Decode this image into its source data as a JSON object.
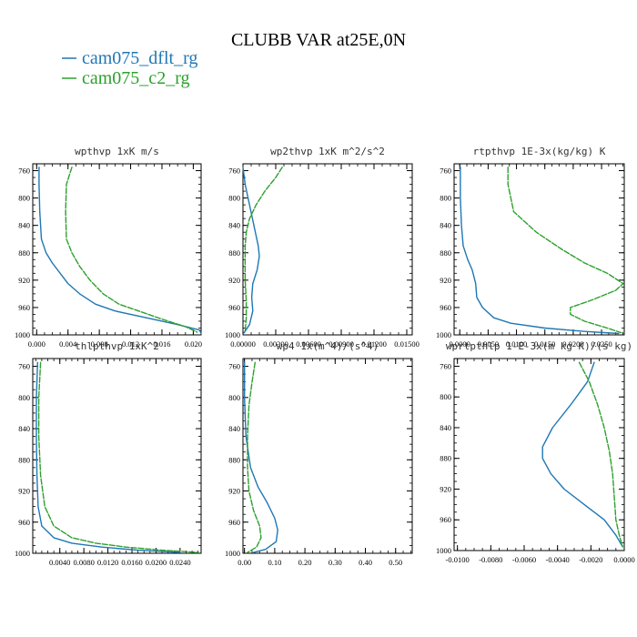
{
  "figure": {
    "title": "CLUBB VAR at25E,0N",
    "legend": [
      {
        "name": "cam075_dflt_rg",
        "color": "#1f77b4",
        "style": "solid"
      },
      {
        "name": "cam075_c2_rg",
        "color": "#2ca02c",
        "style": "dashed"
      }
    ]
  },
  "chart_data": [
    {
      "type": "line",
      "title": "wpthvp  1xK m/s",
      "xlim": [
        -0.0005,
        0.021
      ],
      "ylim": [
        1000,
        750
      ],
      "xticks": [
        0.0,
        0.004,
        0.008,
        0.012,
        0.016,
        0.02
      ],
      "xtick_labels": [
        "0.000",
        "0.004",
        "0.008",
        "0.012",
        "0.016",
        "0.020"
      ],
      "yticks": [
        760,
        800,
        840,
        880,
        920,
        960,
        1000
      ],
      "series": [
        {
          "name": "cam075_dflt_rg",
          "points": [
            [
              0.0003,
              755
            ],
            [
              0.0003,
              780
            ],
            [
              0.0004,
              820
            ],
            [
              0.0006,
              860
            ],
            [
              0.0012,
              880
            ],
            [
              0.002,
              895
            ],
            [
              0.003,
              910
            ],
            [
              0.004,
              925
            ],
            [
              0.0055,
              940
            ],
            [
              0.0075,
              955
            ],
            [
              0.01,
              965
            ],
            [
              0.014,
              975
            ],
            [
              0.018,
              985
            ],
            [
              0.0208,
              993
            ],
            [
              0.021,
              998
            ]
          ]
        },
        {
          "name": "cam075_c2_rg",
          "points": [
            [
              0.0045,
              755
            ],
            [
              0.0038,
              780
            ],
            [
              0.0037,
              820
            ],
            [
              0.0038,
              860
            ],
            [
              0.0045,
              880
            ],
            [
              0.0055,
              900
            ],
            [
              0.0068,
              920
            ],
            [
              0.0085,
              940
            ],
            [
              0.0105,
              955
            ],
            [
              0.013,
              965
            ],
            [
              0.016,
              977
            ],
            [
              0.019,
              988
            ],
            [
              0.0205,
              996
            ]
          ]
        }
      ]
    },
    {
      "type": "line",
      "title": "wp2thvp  1xK m^2/s^2",
      "xlim": [
        0.0,
        0.0155
      ],
      "ylim": [
        1000,
        750
      ],
      "xticks": [
        0.0,
        0.003,
        0.006,
        0.009,
        0.012,
        0.015
      ],
      "xtick_labels": [
        "0.00000",
        "0.00300",
        "0.00600",
        "0.00900",
        "0.01200",
        "0.01500"
      ],
      "yticks": [
        760,
        800,
        840,
        880,
        920,
        960,
        1000
      ],
      "series": [
        {
          "name": "cam075_dflt_rg",
          "points": [
            [
              0.0,
              755
            ],
            [
              0.0002,
              780
            ],
            [
              0.0006,
              810
            ],
            [
              0.001,
              840
            ],
            [
              0.0014,
              870
            ],
            [
              0.0015,
              885
            ],
            [
              0.0013,
              905
            ],
            [
              0.0009,
              925
            ],
            [
              0.0008,
              945
            ],
            [
              0.0009,
              965
            ],
            [
              0.0006,
              985
            ],
            [
              0.0001,
              997
            ]
          ]
        },
        {
          "name": "cam075_c2_rg",
          "points": [
            [
              0.0036,
              755
            ],
            [
              0.003,
              770
            ],
            [
              0.002,
              790
            ],
            [
              0.0012,
              810
            ],
            [
              0.0006,
              830
            ],
            [
              0.0003,
              850
            ],
            [
              0.0002,
              870
            ],
            [
              0.0002,
              890
            ],
            [
              0.0002,
              920
            ],
            [
              0.0003,
              950
            ],
            [
              0.0003,
              975
            ],
            [
              0.0002,
              995
            ]
          ]
        }
      ]
    },
    {
      "type": "line",
      "title": "rtpthvp  1E-3x(kg/kg) K",
      "xlim": [
        -0.001,
        0.029
      ],
      "ylim": [
        1000,
        750
      ],
      "xticks": [
        0.0,
        0.005,
        0.01,
        0.015,
        0.02,
        0.025
      ],
      "xtick_labels": [
        "0.0000",
        "0.0050",
        "0.0100",
        "0.0150",
        "0.0200",
        "0.0250"
      ],
      "yticks": [
        760,
        800,
        840,
        880,
        920,
        960,
        1000
      ],
      "series": [
        {
          "name": "cam075_dflt_rg",
          "points": [
            [
              0.0001,
              755
            ],
            [
              0.0001,
              800
            ],
            [
              0.0003,
              840
            ],
            [
              0.0006,
              870
            ],
            [
              0.0014,
              890
            ],
            [
              0.0022,
              905
            ],
            [
              0.0028,
              925
            ],
            [
              0.003,
              945
            ],
            [
              0.004,
              960
            ],
            [
              0.006,
              975
            ],
            [
              0.009,
              983
            ],
            [
              0.015,
              990
            ],
            [
              0.022,
              995
            ],
            [
              0.028,
              998
            ]
          ]
        },
        {
          "name": "cam075_c2_rg",
          "points": [
            [
              0.0085,
              755
            ],
            [
              0.0085,
              780
            ],
            [
              0.0095,
              820
            ],
            [
              0.0135,
              850
            ],
            [
              0.018,
              875
            ],
            [
              0.022,
              895
            ],
            [
              0.026,
              910
            ],
            [
              0.0288,
              925
            ],
            [
              0.0275,
              935
            ],
            [
              0.023,
              950
            ],
            [
              0.0195,
              960
            ],
            [
              0.0195,
              970
            ],
            [
              0.022,
              980
            ],
            [
              0.026,
              990
            ],
            [
              0.0285,
              997
            ]
          ]
        }
      ]
    },
    {
      "type": "line",
      "title": "thlpthvp  1xK^2",
      "xlim": [
        -0.0005,
        0.0275
      ],
      "ylim": [
        1000,
        750
      ],
      "xticks": [
        0.004,
        0.008,
        0.012,
        0.016,
        0.02,
        0.024
      ],
      "xtick_labels": [
        "0.0040",
        "0.0080",
        "0.0120",
        "0.0160",
        "0.0200",
        "0.0240"
      ],
      "yticks": [
        760,
        800,
        840,
        880,
        920,
        960,
        1000
      ],
      "series": [
        {
          "name": "cam075_dflt_rg",
          "points": [
            [
              0.0003,
              755
            ],
            [
              0.0001,
              800
            ],
            [
              0.0001,
              850
            ],
            [
              0.0002,
              900
            ],
            [
              0.0004,
              940
            ],
            [
              0.001,
              965
            ],
            [
              0.003,
              980
            ],
            [
              0.006,
              987
            ],
            [
              0.011,
              992
            ],
            [
              0.017,
              996
            ],
            [
              0.024,
              999
            ]
          ]
        },
        {
          "name": "cam075_c2_rg",
          "points": [
            [
              0.0008,
              755
            ],
            [
              0.0005,
              800
            ],
            [
              0.0005,
              850
            ],
            [
              0.0008,
              900
            ],
            [
              0.0015,
              940
            ],
            [
              0.003,
              965
            ],
            [
              0.006,
              980
            ],
            [
              0.01,
              987
            ],
            [
              0.015,
              992
            ],
            [
              0.021,
              996
            ],
            [
              0.027,
              999
            ]
          ]
        }
      ]
    },
    {
      "type": "line",
      "title": "wp4  1x(m^4)/(s^4)",
      "xlim": [
        -0.005,
        0.555
      ],
      "ylim": [
        1000,
        750
      ],
      "xticks": [
        0.0,
        0.1,
        0.2,
        0.3,
        0.4,
        0.5
      ],
      "xtick_labels": [
        "0.00",
        "0.10",
        "0.20",
        "0.30",
        "0.40",
        "0.50"
      ],
      "yticks": [
        760,
        800,
        840,
        880,
        920,
        960,
        1000
      ],
      "series": [
        {
          "name": "cam075_dflt_rg",
          "points": [
            [
              0.0,
              755
            ],
            [
              0.0,
              800
            ],
            [
              0.005,
              850
            ],
            [
              0.02,
              890
            ],
            [
              0.045,
              915
            ],
            [
              0.075,
              935
            ],
            [
              0.1,
              955
            ],
            [
              0.11,
              970
            ],
            [
              0.105,
              985
            ],
            [
              0.07,
              995
            ],
            [
              0.03,
              999
            ]
          ]
        },
        {
          "name": "cam075_c2_rg",
          "points": [
            [
              0.035,
              755
            ],
            [
              0.025,
              780
            ],
            [
              0.015,
              810
            ],
            [
              0.01,
              850
            ],
            [
              0.01,
              890
            ],
            [
              0.015,
              920
            ],
            [
              0.03,
              945
            ],
            [
              0.05,
              965
            ],
            [
              0.055,
              980
            ],
            [
              0.04,
              992
            ],
            [
              0.01,
              999
            ]
          ]
        }
      ]
    },
    {
      "type": "line",
      "title": "wprtpthlp  1-E-3x(m kg K)/(s kg)",
      "xlim": [
        -0.0102,
        0.0
      ],
      "ylim": [
        1000,
        750
      ],
      "xticks": [
        -0.01,
        -0.008,
        -0.006,
        -0.004,
        -0.002,
        0.0
      ],
      "xtick_labels": [
        "-0.0100",
        "-0.0080",
        "-0.0060",
        "-0.0040",
        "-0.0020",
        "0.0000"
      ],
      "yticks": [
        760,
        800,
        840,
        880,
        920,
        960,
        1000
      ],
      "series": [
        {
          "name": "cam075_dflt_rg",
          "points": [
            [
              -0.0018,
              755
            ],
            [
              -0.0022,
              780
            ],
            [
              -0.0032,
              810
            ],
            [
              -0.0043,
              840
            ],
            [
              -0.0049,
              865
            ],
            [
              -0.0049,
              880
            ],
            [
              -0.0044,
              900
            ],
            [
              -0.0036,
              920
            ],
            [
              -0.0024,
              940
            ],
            [
              -0.0012,
              960
            ],
            [
              -0.0005,
              980
            ],
            [
              -0.0001,
              995
            ]
          ]
        },
        {
          "name": "cam075_c2_rg",
          "points": [
            [
              -0.0027,
              755
            ],
            [
              -0.0021,
              780
            ],
            [
              -0.0016,
              810
            ],
            [
              -0.0012,
              840
            ],
            [
              -0.0009,
              870
            ],
            [
              -0.0007,
              900
            ],
            [
              -0.0006,
              930
            ],
            [
              -0.0005,
              960
            ],
            [
              -0.0003,
              980
            ],
            [
              -0.0001,
              995
            ]
          ]
        }
      ]
    }
  ]
}
